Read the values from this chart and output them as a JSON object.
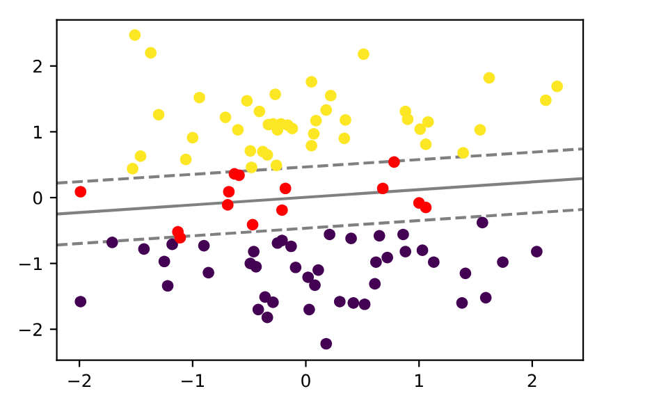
{
  "chart_data": {
    "type": "scatter",
    "xlim": [
      -2.2,
      2.45
    ],
    "ylim": [
      -2.47,
      2.7
    ],
    "xticks": [
      {
        "value": -2,
        "label": "−2"
      },
      {
        "value": -1,
        "label": "−1"
      },
      0,
      1,
      2
    ],
    "yticks": [
      {
        "value": -2,
        "label": "−2"
      },
      {
        "value": -1,
        "label": "−1"
      },
      0,
      1,
      2
    ],
    "marker": "circle",
    "grid": false,
    "legend": false,
    "series": [
      {
        "color": "#fde725",
        "x": [
          -1.51,
          -1.37,
          -1.3,
          -1.46,
          -1.53,
          -1.0,
          -0.94,
          -1.06,
          -0.71,
          -0.6,
          -0.52,
          -0.41,
          -0.49,
          -0.48,
          -0.38,
          -0.34,
          -0.27,
          -0.33,
          -0.29,
          -0.25,
          -0.22,
          -0.16,
          -0.12,
          -0.26,
          0.05,
          0.22,
          0.18,
          0.09,
          0.07,
          0.05,
          0.35,
          0.34,
          0.51,
          1.62,
          2.22,
          2.12,
          0.88,
          0.9,
          1.08,
          1.01,
          1.06,
          1.54,
          1.39
        ],
        "values": [
          2.47,
          2.2,
          1.26,
          0.63,
          0.44,
          0.91,
          1.52,
          0.58,
          1.22,
          1.03,
          1.47,
          1.31,
          0.71,
          0.46,
          0.7,
          0.65,
          1.57,
          1.11,
          1.12,
          1.03,
          1.12,
          1.1,
          1.05,
          0.49,
          1.76,
          1.55,
          1.33,
          1.17,
          0.97,
          0.79,
          1.18,
          0.9,
          2.18,
          1.82,
          1.69,
          1.48,
          1.31,
          1.19,
          1.15,
          1.04,
          0.81,
          1.03,
          0.68
        ]
      },
      {
        "color": "#440154",
        "x": [
          -1.99,
          -1.71,
          -1.43,
          -1.25,
          -1.18,
          -1.22,
          -0.9,
          -0.86,
          -0.46,
          -0.49,
          -0.44,
          -0.36,
          -0.29,
          -0.42,
          -0.34,
          -0.25,
          -0.21,
          -0.13,
          -0.09,
          0.02,
          0.08,
          0.11,
          0.03,
          0.21,
          0.3,
          0.18,
          0.4,
          0.42,
          0.52,
          0.65,
          0.62,
          0.72,
          0.61,
          0.86,
          0.88,
          1.03,
          1.13,
          1.56,
          1.41,
          1.38,
          1.59,
          1.74,
          2.04
        ],
        "values": [
          -1.58,
          -0.68,
          -0.78,
          -0.97,
          -0.71,
          -1.34,
          -0.73,
          -1.14,
          -0.82,
          -1.0,
          -1.05,
          -1.51,
          -1.59,
          -1.7,
          -1.82,
          -0.69,
          -0.65,
          -0.74,
          -1.06,
          -1.21,
          -1.33,
          -1.1,
          -1.7,
          -0.56,
          -1.58,
          -2.22,
          -0.62,
          -1.6,
          -1.62,
          -0.58,
          -0.98,
          -0.91,
          -1.31,
          -0.56,
          -0.82,
          -0.8,
          -0.98,
          -0.38,
          -1.15,
          -1.6,
          -1.52,
          -0.98,
          -0.82
        ]
      },
      {
        "type": "line",
        "color": "#808080",
        "line_style": "solid",
        "marker": "none",
        "x": [
          -2.2,
          2.45
        ],
        "values": [
          -0.25,
          0.29
        ]
      },
      {
        "type": "line",
        "color": "#808080",
        "line_style": "dashed",
        "marker": "none",
        "x": [
          -2.2,
          2.45
        ],
        "values": [
          0.22,
          0.74
        ]
      },
      {
        "type": "line",
        "color": "#808080",
        "line_style": "dashed",
        "marker": "none",
        "x": [
          -2.2,
          2.45
        ],
        "values": [
          -0.72,
          -0.18
        ]
      },
      {
        "color": "#ff0000",
        "x": [
          -1.99,
          -0.68,
          -0.69,
          -0.63,
          -0.59,
          -0.18,
          -0.21,
          -0.47,
          -1.13,
          -1.11,
          0.78,
          0.68,
          1.0,
          1.06
        ],
        "values": [
          0.09,
          0.09,
          -0.11,
          0.36,
          0.34,
          0.14,
          -0.19,
          -0.41,
          -0.52,
          -0.61,
          0.54,
          0.14,
          -0.08,
          -0.15
        ]
      }
    ]
  }
}
